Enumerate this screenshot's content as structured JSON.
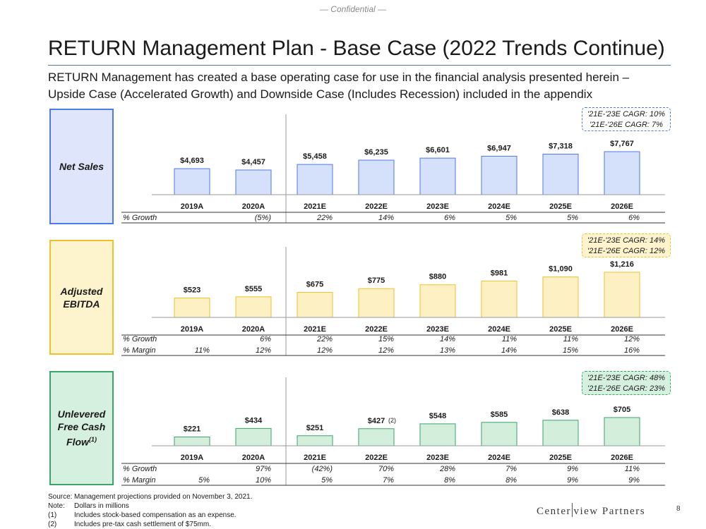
{
  "header": {
    "confidential": "— Confidential —",
    "title": "RETURN Management Plan - Base Case (2022 Trends Continue)",
    "subtitle": "RETURN Management has created a base operating case for use in the financial analysis presented herein – Upside Case (Accelerated Growth) and Downside Case (Includes Recession) included in the appendix"
  },
  "colors": {
    "net_sales_fill": "#d5e0fb",
    "net_sales_border": "#4f79e6",
    "net_sales_box": "#dfe6fb",
    "ebitda_fill": "#fdf0c2",
    "ebitda_border": "#ecc22f",
    "ebitda_box": "#fdf3cc",
    "fcf_fill": "#d3efdc",
    "fcf_border": "#3aa56a",
    "fcf_box": "#d6f0df"
  },
  "chart_data": [
    {
      "type": "bar",
      "title": "Net Sales",
      "categories": [
        "2019A",
        "2020A",
        "2021E",
        "2022E",
        "2023E",
        "2024E",
        "2025E",
        "2026E"
      ],
      "values": [
        4693,
        4457,
        5458,
        6235,
        6601,
        6947,
        7318,
        7767
      ],
      "labels": [
        "$4,693",
        "$4,457",
        "$5,458",
        "$6,235",
        "$6,601",
        "$6,947",
        "$7,318",
        "$7,767"
      ],
      "ylim": [
        0,
        7767
      ],
      "cagr": [
        "'21E-'23E CAGR: 10%",
        "'21E-'26E CAGR: 7%"
      ],
      "rows": [
        {
          "label": "% Growth",
          "values": [
            "",
            "(5%)",
            "22%",
            "14%",
            "6%",
            "5%",
            "5%",
            "6%"
          ]
        }
      ]
    },
    {
      "type": "bar",
      "title": "Adjusted EBITDA",
      "categories": [
        "2019A",
        "2020A",
        "2021E",
        "2022E",
        "2023E",
        "2024E",
        "2025E",
        "2026E"
      ],
      "values": [
        523,
        555,
        675,
        775,
        880,
        981,
        1090,
        1216
      ],
      "labels": [
        "$523",
        "$555",
        "$675",
        "$775",
        "$880",
        "$981",
        "$1,090",
        "$1,216"
      ],
      "ylim": [
        0,
        1216
      ],
      "cagr": [
        "'21E-'23E CAGR: 14%",
        "'21E-'26E CAGR: 12%"
      ],
      "rows": [
        {
          "label": "% Growth",
          "values": [
            "",
            "6%",
            "22%",
            "15%",
            "14%",
            "11%",
            "11%",
            "12%"
          ]
        },
        {
          "label": "% Margin",
          "values": [
            "11%",
            "12%",
            "12%",
            "12%",
            "13%",
            "14%",
            "15%",
            "16%"
          ]
        }
      ]
    },
    {
      "type": "bar",
      "title": "Unlevered Free Cash Flow",
      "title_note": "(1)",
      "categories": [
        "2019A",
        "2020A",
        "2021E",
        "2022E",
        "2023E",
        "2024E",
        "2025E",
        "2026E"
      ],
      "values": [
        221,
        434,
        251,
        427,
        548,
        585,
        638,
        705
      ],
      "labels": [
        "$221",
        "$434",
        "$251",
        "$427",
        "$548",
        "$585",
        "$638",
        "$705"
      ],
      "label_notes": [
        "",
        "",
        "",
        "(2)",
        "",
        "",
        "",
        ""
      ],
      "ylim": [
        0,
        705
      ],
      "cagr": [
        "'21E-'23E CAGR: 48%",
        "'21E-'26E CAGR: 23%"
      ],
      "rows": [
        {
          "label": "% Growth",
          "values": [
            "",
            "97%",
            "(42%)",
            "70%",
            "28%",
            "7%",
            "9%",
            "11%"
          ]
        },
        {
          "label": "% Margin",
          "values": [
            "5%",
            "10%",
            "5%",
            "7%",
            "8%",
            "8%",
            "9%",
            "9%"
          ]
        }
      ]
    }
  ],
  "boxes": {
    "net_sales": "Net Sales",
    "ebitda_line1": "Adjusted",
    "ebitda_line2": "EBITDA",
    "fcf_line1": "Unlevered",
    "fcf_line2": "Free Cash",
    "fcf_line3": "Flow",
    "fcf_note": "(1)"
  },
  "footnotes": [
    {
      "tag": "Source:",
      "text": "Management projections provided on November 3, 2021."
    },
    {
      "tag": "Note:",
      "text": "Dollars in millions"
    },
    {
      "tag": "(1)",
      "text": "Includes stock-based compensation as an expense."
    },
    {
      "tag": "(2)",
      "text": "Includes pre-tax cash settlement of $75mm."
    }
  ],
  "footer": {
    "logo_left": "Center",
    "logo_right": "view Partners",
    "page_number": "8"
  }
}
